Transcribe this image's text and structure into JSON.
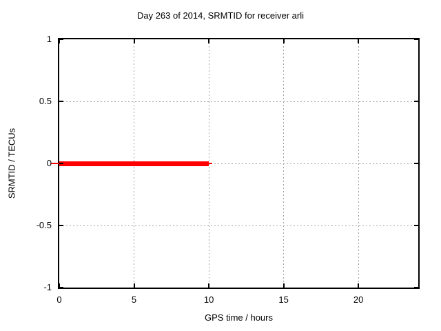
{
  "chart_data": {
    "type": "line",
    "title": "Day 263 of 2014, SRMTID for receiver arli",
    "xlabel": "GPS time / hours",
    "ylabel": "SRMTID / TECUs",
    "xlim": [
      0,
      24
    ],
    "ylim": [
      -1,
      1
    ],
    "xticks": [
      0,
      5,
      10,
      15,
      20
    ],
    "yticks": [
      1,
      0.5,
      0,
      -0.5,
      -1
    ],
    "grid": true,
    "grid_style": "dashed",
    "legend": false,
    "colors": {
      "series": "#ff0000",
      "grid": "#a0a0a0",
      "border": "#000000",
      "text": "#000000",
      "background": "#ffffff"
    },
    "series": [
      {
        "name": "SRMTID",
        "color": "#ff0000",
        "linewidth": 7,
        "x": [
          0,
          10
        ],
        "y": [
          0,
          0
        ]
      }
    ]
  }
}
